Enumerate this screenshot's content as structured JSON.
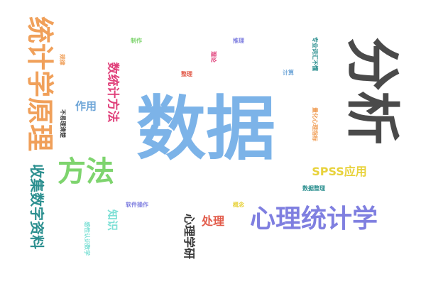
{
  "words": [
    {
      "key": "shuju",
      "text": "数据",
      "color": "#7cb3e8"
    },
    {
      "key": "fenxi",
      "text": "分析",
      "color": "#4a4a4a"
    },
    {
      "key": "tongjixue",
      "text": "统计学原理",
      "color": "#f0a05a"
    },
    {
      "key": "xinlitongji",
      "text": "心理统计学",
      "color": "#7f7fe0"
    },
    {
      "key": "fangfa",
      "text": "方法",
      "color": "#7ed46e"
    },
    {
      "key": "shouji",
      "text": "收集数字资料",
      "color": "#2b8f8f"
    },
    {
      "key": "shutongji",
      "text": "数统计方法",
      "color": "#e0407a"
    },
    {
      "key": "spss",
      "text": "SPSS应用",
      "color": "#e8d23c"
    },
    {
      "key": "zuoyong",
      "text": "作用",
      "color": "#6fa6d8"
    },
    {
      "key": "zhishi",
      "text": "知识",
      "color": "#7ee0d6"
    },
    {
      "key": "chuli",
      "text": "处理",
      "color": "#e25b4a"
    },
    {
      "key": "xinlixueyan",
      "text": "心理学研",
      "color": "#3a3a3a"
    },
    {
      "key": "zhizuo",
      "text": "制作",
      "color": "#7ed46e"
    },
    {
      "key": "tuili",
      "text": "推理",
      "color": "#7f7fe0"
    },
    {
      "key": "zhuanye",
      "text": "专业词汇不懂",
      "color": "#2b8f8f"
    },
    {
      "key": "guilv",
      "text": "规律",
      "color": "#f0a05a"
    },
    {
      "key": "lilun",
      "text": "理论",
      "color": "#e0407a"
    },
    {
      "key": "zhengli",
      "text": "整理",
      "color": "#e25b4a"
    },
    {
      "key": "jisuan",
      "text": "计算",
      "color": "#6fa6d8"
    },
    {
      "key": "liangli",
      "text": "量化心理指标",
      "color": "#f0a05a"
    },
    {
      "key": "bulijie",
      "text": "不易理清楚",
      "color": "#3a3a3a"
    },
    {
      "key": "shujuchuli",
      "text": "数据整理",
      "color": "#2b8f8f"
    },
    {
      "key": "ruanjian",
      "text": "软件操作",
      "color": "#7f7fe0"
    },
    {
      "key": "gainian",
      "text": "概念",
      "color": "#e8d23c"
    },
    {
      "key": "gansu",
      "text": "感性认识数学",
      "color": "#7ee0d6"
    }
  ]
}
